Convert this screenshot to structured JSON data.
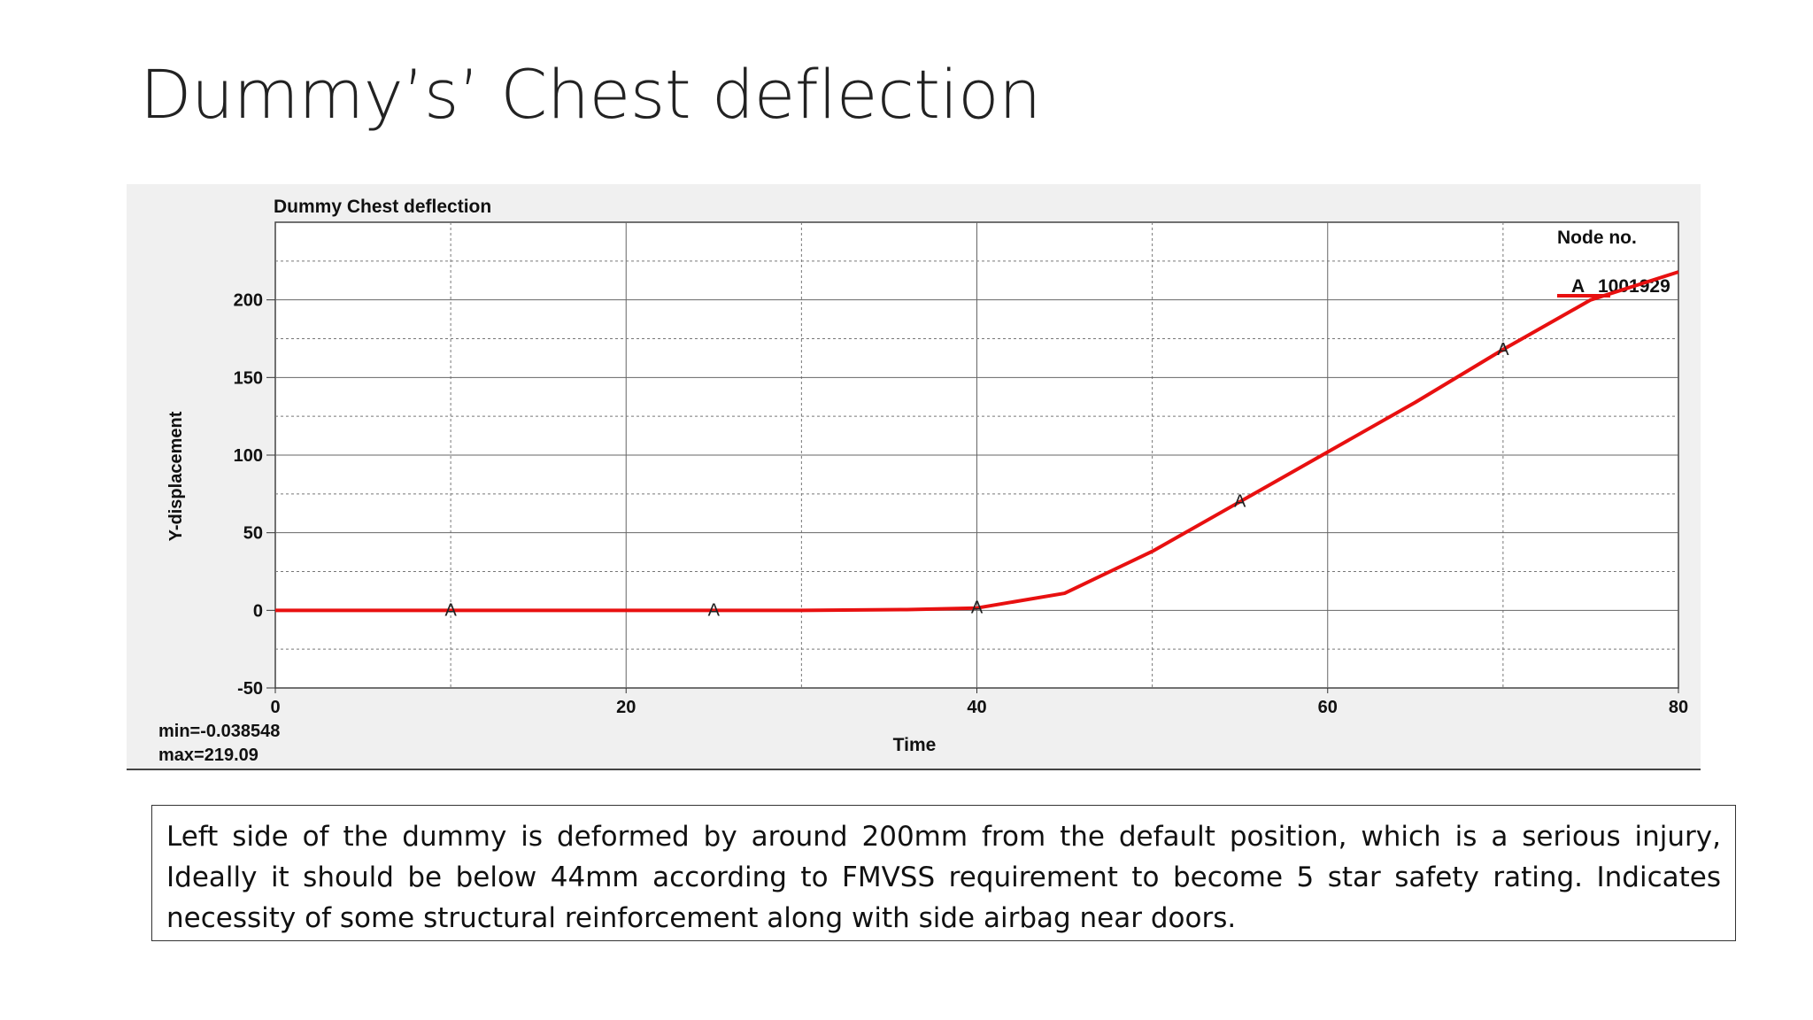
{
  "slide": {
    "title": "Dummy’s’ Chest deflection",
    "caption": "Left side of the dummy is deformed by around 200mm from the default position, which is a serious injury, Ideally it should be below 44mm according to FMVSS requirement to become 5 star safety rating. Indicates necessity of some structural reinforcement along with side airbag near doors."
  },
  "chart_data": {
    "type": "line",
    "title": "Dummy Chest deflection",
    "xlabel": "Time",
    "ylabel": "Y-displacement",
    "xlim": [
      0,
      80
    ],
    "ylim": [
      -50,
      250
    ],
    "x_ticks": [
      0,
      20,
      40,
      60,
      80
    ],
    "y_ticks": [
      -50,
      0,
      50,
      100,
      150,
      200
    ],
    "grid": "on",
    "legend": {
      "title": "Node no.",
      "placement": "top-right",
      "entries": [
        {
          "marker": "A",
          "label": "1001929"
        }
      ]
    },
    "series": [
      {
        "name": "1001929",
        "color": "#e81010",
        "marker_label": "A",
        "x": [
          0,
          10,
          20,
          25,
          30,
          36,
          40,
          45,
          50,
          55,
          60,
          65,
          70,
          75,
          80
        ],
        "y": [
          0,
          0,
          0,
          0,
          0,
          0.5,
          1.5,
          11,
          38,
          70,
          102,
          134,
          168,
          200,
          218
        ],
        "marker_x": [
          10,
          25,
          40,
          55,
          70
        ],
        "marker_y": [
          0,
          0,
          1.5,
          70,
          168
        ]
      }
    ],
    "annotations": {
      "min": "min=-0.038548",
      "max": "max=219.09"
    }
  }
}
